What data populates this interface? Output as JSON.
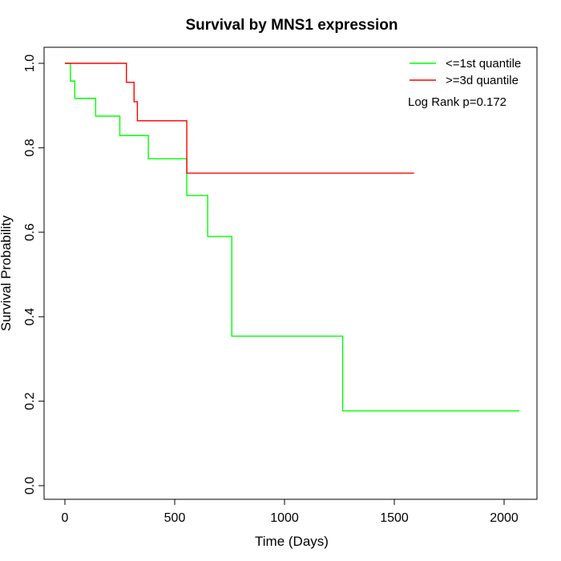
{
  "chart_data": {
    "type": "line",
    "title": "Survival by MNS1 expression",
    "xlabel": "Time (Days)",
    "ylabel": "Survival Probability",
    "xlim": [
      0,
      2070
    ],
    "ylim": [
      0,
      1.0
    ],
    "x_ticks": [
      "0",
      "500",
      "1000",
      "1500",
      "2000"
    ],
    "y_ticks": [
      "0.0",
      "0.2",
      "0.4",
      "0.6",
      "0.8",
      "1.0"
    ],
    "x_tick_values": [
      0,
      500,
      1000,
      1500,
      2000
    ],
    "y_tick_values": [
      0,
      0.2,
      0.4,
      0.6,
      0.8,
      1.0
    ],
    "grid": false,
    "legend_position": "top-right",
    "annotation": "Log Rank p=0.172",
    "series": [
      {
        "name": "<=1st quantile",
        "color": "#00ff00",
        "step": true,
        "x": [
          0,
          25,
          45,
          140,
          250,
          380,
          555,
          650,
          760,
          1265,
          2070
        ],
        "y": [
          1.0,
          0.958,
          0.917,
          0.875,
          0.829,
          0.774,
          0.687,
          0.59,
          0.354,
          0.177,
          0.177
        ]
      },
      {
        "name": ">=3d quantile",
        "color": "#ff0000",
        "step": true,
        "x": [
          0,
          280,
          315,
          330,
          555,
          1590
        ],
        "y": [
          1.0,
          0.955,
          0.909,
          0.864,
          0.74,
          0.74
        ]
      }
    ]
  }
}
